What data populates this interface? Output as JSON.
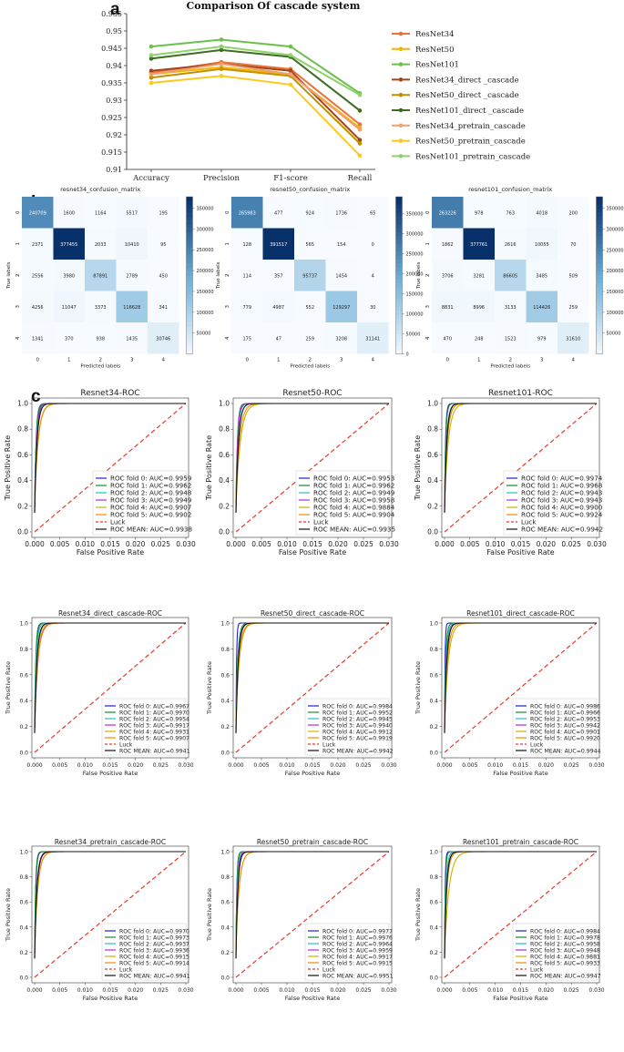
{
  "panel_letters": {
    "a": "a",
    "b": "b",
    "c": "c"
  },
  "colors": {
    "ResNet34": "#e8743b",
    "ResNet50": "#f4b400",
    "ResNet101": "#6dbf4b",
    "ResNet34_direct_cascade": "#a0461c",
    "ResNet50_direct_cascade": "#c09000",
    "ResNet101_direct_cascade": "#3d6e24",
    "ResNet34_pretrain_cascade": "#f0a070",
    "ResNet50_pretrain_cascade": "#ffc81e",
    "ResNet101_pretrain_cascade": "#8ed36a",
    "heat_low": "#f7fbff",
    "heat_high": "#08306b",
    "fold0": "#1f1fd0",
    "fold1": "#1a8a2a",
    "fold2": "#20c0c0",
    "fold3": "#b030d0",
    "fold4": "#c8b400",
    "fold5": "#f08a00",
    "luck": "#e8392e",
    "mean": "#111111"
  },
  "chart_data": [
    {
      "type": "line",
      "id": "cascade",
      "title": "Comparison Of cascade system",
      "categories": [
        "Accuracy",
        "Precision",
        "F1-score",
        "Recall"
      ],
      "yticks": [
        "0.955",
        "0.95",
        "0.945",
        "0.94",
        "0.935",
        "0.93",
        "0.925",
        "0.92",
        "0.915",
        "0.91"
      ],
      "ylim": [
        0.91,
        0.955
      ],
      "series": [
        {
          "name": "ResNet34",
          "values": [
            0.938,
            0.941,
            0.939,
            0.923
          ]
        },
        {
          "name": "ResNet50",
          "values": [
            0.9375,
            0.9395,
            0.9375,
            0.922
          ]
        },
        {
          "name": "ResNet101",
          "values": [
            0.9455,
            0.9475,
            0.9455,
            0.932
          ]
        },
        {
          "name": "ResNet34_direct _cascade",
          "values": [
            0.9385,
            0.9405,
            0.9385,
            0.9185
          ]
        },
        {
          "name": "ResNet50_direct _cascade",
          "values": [
            0.9365,
            0.939,
            0.937,
            0.9175
          ]
        },
        {
          "name": "ResNet101_direct _cascade",
          "values": [
            0.942,
            0.9445,
            0.9425,
            0.927
          ]
        },
        {
          "name": "ResNet34_pretrain_cascade",
          "values": [
            0.9375,
            0.9405,
            0.9375,
            0.9215
          ]
        },
        {
          "name": "ResNet50_pretrain_cascade",
          "values": [
            0.935,
            0.937,
            0.9345,
            0.914
          ]
        },
        {
          "name": "ResNet101_pretrain_cascade",
          "values": [
            0.943,
            0.9455,
            0.943,
            0.9315
          ]
        }
      ]
    },
    {
      "type": "heatmap",
      "id": "cm34",
      "title": "resnet34_confusion_matrix",
      "xlabel": "Predicted labels",
      "ylabel": "True labels",
      "labels": [
        "0",
        "1",
        "2",
        "3",
        "4"
      ],
      "matrix": [
        [
          240709,
          1600,
          1164,
          5517,
          195
        ],
        [
          2371,
          377455,
          2033,
          10410,
          95
        ],
        [
          2556,
          3980,
          87891,
          2789,
          450
        ],
        [
          4256,
          11047,
          3373,
          116628,
          341
        ],
        [
          1341,
          370,
          938,
          1435,
          30746
        ]
      ],
      "colorbar_ticks": [
        "350000",
        "300000",
        "250000",
        "200000",
        "150000",
        "100000",
        "50000"
      ]
    },
    {
      "type": "heatmap",
      "id": "cm50",
      "title": "resnet50_confusion_matrix",
      "xlabel": "Predicted labels",
      "ylabel": "True labels",
      "labels": [
        "0",
        "1",
        "2",
        "3",
        "4"
      ],
      "matrix": [
        [
          265983,
          477,
          924,
          1736,
          65
        ],
        [
          128,
          391517,
          565,
          154,
          0
        ],
        [
          114,
          357,
          95737,
          1454,
          4
        ],
        [
          779,
          4987,
          552,
          129297,
          30
        ],
        [
          175,
          47,
          259,
          3208,
          31141
        ]
      ],
      "colorbar_ticks": [
        "350000",
        "300000",
        "250000",
        "200000",
        "150000",
        "100000",
        "50000",
        "0"
      ]
    },
    {
      "type": "heatmap",
      "id": "cm101",
      "title": "resnet101_confusion_matrix",
      "xlabel": "Predicted labels",
      "ylabel": "True labels",
      "labels": [
        "0",
        "1",
        "2",
        "3",
        "4"
      ],
      "matrix": [
        [
          263226,
          978,
          763,
          4018,
          200
        ],
        [
          1862,
          377761,
          2616,
          10055,
          70
        ],
        [
          3706,
          3281,
          86605,
          3485,
          509
        ],
        [
          8831,
          8996,
          3133,
          114426,
          259
        ],
        [
          470,
          248,
          1523,
          979,
          31610
        ]
      ],
      "colorbar_ticks": [
        "350000",
        "300000",
        "250000",
        "200000",
        "150000",
        "100000",
        "50000"
      ]
    },
    {
      "type": "line",
      "id": "roc34",
      "title": "Resnet34-ROC",
      "xlabel": "False Positive Rate",
      "ylabel": "True Positive Rate",
      "legend": [
        "ROC fold 0: AUC=0.9959",
        "ROC fold 1: AUC=0.9962",
        "ROC fold 2: AUC=0.9948",
        "ROC fold 3: AUC=0.9949",
        "ROC fold 4: AUC=0.9907",
        "ROC fold 5: AUC=0.9902",
        "Luck",
        "ROC MEAN: AUC=0.9938"
      ],
      "auc": [
        0.9959,
        0.9962,
        0.9948,
        0.9949,
        0.9907,
        0.9902,
        0.9938
      ]
    },
    {
      "type": "line",
      "id": "roc50",
      "title": "Resnet50-ROC",
      "xlabel": "False Positive Rate",
      "ylabel": "True Positive Rate",
      "legend": [
        "ROC fold 0: AUC=0.9953",
        "ROC fold 1: AUC=0.9962",
        "ROC fold 2: AUC=0.9949",
        "ROC fold 3: AUC=0.9958",
        "ROC fold 4: AUC=0.9884",
        "ROC fold 5: AUC=0.9904",
        "Luck",
        "ROC MEAN: AUC=0.9935"
      ],
      "auc": [
        0.9953,
        0.9962,
        0.9949,
        0.9958,
        0.9884,
        0.9904,
        0.9935
      ]
    },
    {
      "type": "line",
      "id": "roc101",
      "title": "Resnet101-ROC",
      "xlabel": "False Positive Rate",
      "ylabel": "True Positive Rate",
      "legend": [
        "ROC fold 0: AUC=0.9974",
        "ROC fold 1: AUC=0.9968",
        "ROC fold 2: AUC=0.9943",
        "ROC fold 3: AUC=0.9943",
        "ROC fold 4: AUC=0.9900",
        "ROC fold 5: AUC=0.9924",
        "Luck",
        "ROC MEAN: AUC=0.9942"
      ],
      "auc": [
        0.9974,
        0.9968,
        0.9943,
        0.9943,
        0.99,
        0.9924,
        0.9942
      ]
    },
    {
      "type": "line",
      "id": "roc34d",
      "title": "Resnet34_direct_cascade-ROC",
      "xlabel": "False Positive Rate",
      "ylabel": "True Positive Rate",
      "legend": [
        "ROC fold 0: AUC=0.9967",
        "ROC fold 1: AUC=0.9970",
        "ROC fold 2: AUC=0.9954",
        "ROC fold 3: AUC=0.9917",
        "ROC fold 4: AUC=0.9931",
        "ROC fold 5: AUC=0.9907",
        "Luck",
        "ROC MEAN: AUC=0.9941"
      ],
      "auc": [
        0.9967,
        0.997,
        0.9954,
        0.9917,
        0.9931,
        0.9907,
        0.9941
      ]
    },
    {
      "type": "line",
      "id": "roc50d",
      "title": "Resnet50_direct_cascade-ROC",
      "xlabel": "False Positive Rate",
      "ylabel": "True Positive Rate",
      "legend": [
        "ROC fold 0: AUC=0.9984",
        "ROC fold 1: AUC=0.9952",
        "ROC fold 2: AUC=0.9945",
        "ROC fold 3: AUC=0.9940",
        "ROC fold 4: AUC=0.9912",
        "ROC fold 5: AUC=0.9919",
        "Luck",
        "ROC MEAN: AUC=0.9942"
      ],
      "auc": [
        0.9984,
        0.9952,
        0.9945,
        0.994,
        0.9912,
        0.9919,
        0.9942
      ]
    },
    {
      "type": "line",
      "id": "roc101d",
      "title": "Resnet101_direct_cascade-ROC",
      "xlabel": "False Positive Rate",
      "ylabel": "True Positive Rate",
      "legend": [
        "ROC fold 0: AUC=0.9986",
        "ROC fold 1: AUC=0.9966",
        "ROC fold 2: AUC=0.9953",
        "ROC fold 3: AUC=0.9942",
        "ROC fold 4: AUC=0.9901",
        "ROC fold 5: AUC=0.9920",
        "Luck",
        "ROC MEAN: AUC=0.9944"
      ],
      "auc": [
        0.9986,
        0.9966,
        0.9953,
        0.9942,
        0.9901,
        0.992,
        0.9944
      ]
    },
    {
      "type": "line",
      "id": "roc34p",
      "title": "Resnet34_pretrain_cascade-ROC",
      "xlabel": "False Positive Rate",
      "ylabel": "True Positive Rate",
      "legend": [
        "ROC fold 0: AUC=0.9970",
        "ROC fold 1: AUC=0.9973",
        "ROC fold 2: AUC=0.9937",
        "ROC fold 3: AUC=0.9936",
        "ROC fold 4: AUC=0.9915",
        "ROC fold 5: AUC=0.9914",
        "Luck",
        "ROC MEAN: AUC=0.9941"
      ],
      "auc": [
        0.997,
        0.9973,
        0.9937,
        0.9936,
        0.9915,
        0.9914,
        0.9941
      ]
    },
    {
      "type": "line",
      "id": "roc50p",
      "title": "Resnet50_pretrain_cascade-ROC",
      "xlabel": "False Positive Rate",
      "ylabel": "True Positive Rate",
      "legend": [
        "ROC fold 0: AUC=0.9977",
        "ROC fold 1: AUC=0.9976",
        "ROC fold 2: AUC=0.9964",
        "ROC fold 3: AUC=0.9959",
        "ROC fold 4: AUC=0.9917",
        "ROC fold 5: AUC=0.9915",
        "Luck",
        "ROC MEAN: AUC=0.9951"
      ],
      "auc": [
        0.9977,
        0.9976,
        0.9964,
        0.9959,
        0.9917,
        0.9915,
        0.9951
      ]
    },
    {
      "type": "line",
      "id": "roc101p",
      "title": "Resnet101_pretrain_cascade-ROC",
      "xlabel": "False Positive Rate",
      "ylabel": "True Positive Rate",
      "legend": [
        "ROC fold 0: AUC=0.9984",
        "ROC fold 1: AUC=0.9978",
        "ROC fold 2: AUC=0.9958",
        "ROC fold 3: AUC=0.9948",
        "ROC fold 4: AUC=0.9881",
        "ROC fold 5: AUC=0.9933",
        "Luck",
        "ROC MEAN: AUC=0.9947"
      ],
      "auc": [
        0.9984,
        0.9978,
        0.9958,
        0.9948,
        0.9881,
        0.9933,
        0.9947
      ]
    }
  ],
  "roc_axes": {
    "xticks": [
      "0.000",
      "0.005",
      "0.010",
      "0.015",
      "0.020",
      "0.025",
      "0.030"
    ],
    "yticks": [
      "0.0",
      "0.2",
      "0.4",
      "0.6",
      "0.8",
      "1.0"
    ],
    "xlim": [
      0,
      0.03
    ],
    "ylim": [
      0,
      1
    ]
  }
}
